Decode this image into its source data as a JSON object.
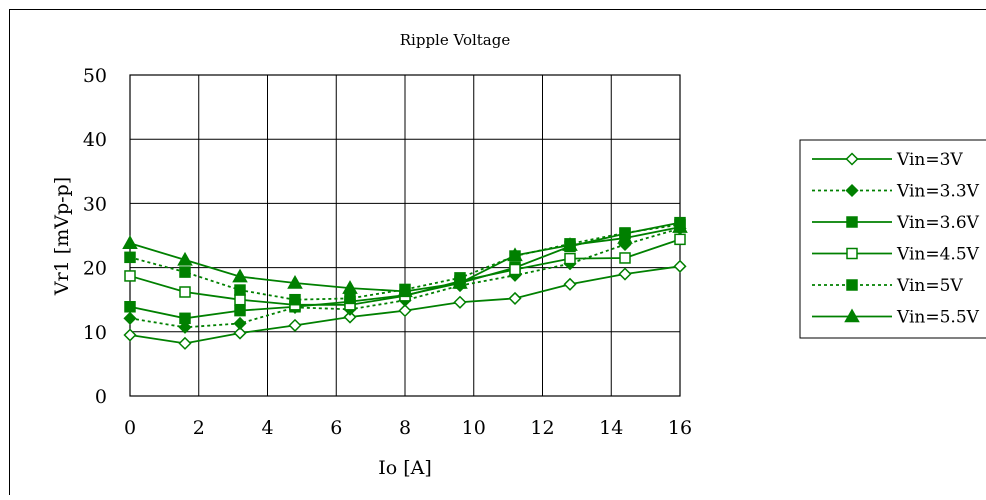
{
  "chart_data": {
    "type": "line",
    "title": "Ripple Voltage",
    "xlabel": "Io [A]",
    "ylabel": "Vr1 [mVp-p]",
    "xlim": [
      0,
      16
    ],
    "ylim": [
      0,
      50
    ],
    "x_ticks": [
      "0",
      "2",
      "4",
      "6",
      "8",
      "10",
      "12",
      "14",
      "16"
    ],
    "y_ticks": [
      "0",
      "10",
      "20",
      "30",
      "40",
      "50"
    ],
    "grid": true,
    "legend_position": "right",
    "line_color": "#008000",
    "x": [
      0,
      1.6,
      3.2,
      4.8,
      6.4,
      8.0,
      9.6,
      11.2,
      12.8,
      14.4,
      16.0
    ],
    "series": [
      {
        "name": "Vin=3V",
        "marker": "diamond-open",
        "dash": "solid",
        "values": [
          9.5,
          8.2,
          9.8,
          11.0,
          12.3,
          13.3,
          14.6,
          15.2,
          17.4,
          19.0,
          20.2
        ]
      },
      {
        "name": "Vin=3.3V",
        "marker": "diamond-filled",
        "dash": "dotted",
        "values": [
          12.1,
          10.7,
          11.3,
          13.8,
          13.5,
          14.9,
          17.2,
          18.8,
          20.6,
          23.6,
          26.1
        ]
      },
      {
        "name": "Vin=3.6V",
        "marker": "square-filled",
        "dash": "solid",
        "values": [
          13.9,
          12.1,
          13.3,
          13.9,
          14.7,
          15.7,
          17.6,
          20.0,
          23.3,
          25.3,
          27.0
        ]
      },
      {
        "name": "Vin=4.5V",
        "marker": "square-open",
        "dash": "solid",
        "values": [
          18.7,
          16.2,
          15.0,
          14.2,
          14.2,
          15.6,
          17.9,
          19.7,
          21.4,
          21.5,
          24.4
        ]
      },
      {
        "name": "Vin=5V",
        "marker": "square-filled",
        "dash": "dotted",
        "values": [
          21.6,
          19.3,
          16.5,
          15.0,
          15.2,
          16.6,
          18.4,
          21.8,
          23.7,
          25.4,
          26.7
        ]
      },
      {
        "name": "Vin=5.5V",
        "marker": "triangle-filled",
        "dash": "solid",
        "values": [
          23.8,
          21.2,
          18.6,
          17.6,
          16.8,
          16.3,
          17.6,
          21.9,
          23.5,
          24.6,
          26.3
        ]
      }
    ]
  }
}
